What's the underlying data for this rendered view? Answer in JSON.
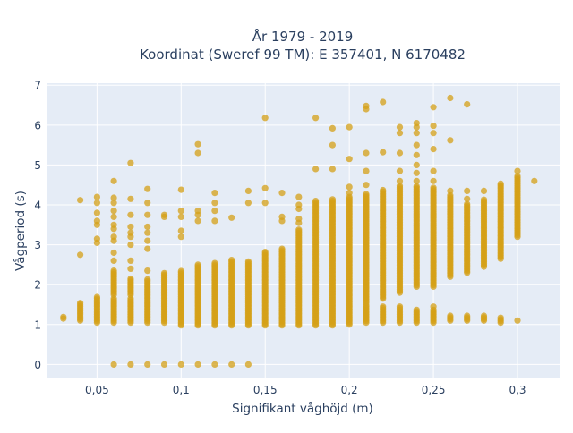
{
  "chart_data": {
    "type": "scatter",
    "title": "År 1979 - 2019",
    "subtitle": "Koordinat (Sweref 99 TM): E 357401, N 6170482",
    "xlabel": "Signifikant våghöjd (m)",
    "ylabel": "Vågperiod (s)",
    "xlim": [
      0.02,
      0.325
    ],
    "ylim": [
      -0.35,
      7.05
    ],
    "x_ticks": [
      0.05,
      0.1,
      0.15,
      0.2,
      0.25,
      0.3
    ],
    "x_tick_labels": [
      "0,05",
      "0,1",
      "0,15",
      "0,2",
      "0,25",
      "0,3"
    ],
    "y_ticks": [
      0,
      1,
      2,
      3,
      4,
      5,
      6,
      7
    ],
    "y_tick_labels": [
      "0",
      "1",
      "2",
      "3",
      "4",
      "5",
      "6",
      "7"
    ],
    "grid": true,
    "marker_color": "#D4A017",
    "background_color": "#E5ECF6",
    "columns": [
      {
        "x": 0.03,
        "bands": [
          [
            1.15,
            1.22
          ]
        ]
      },
      {
        "x": 0.04,
        "bands": [
          [
            1.1,
            1.55
          ]
        ],
        "points": [
          2.75,
          4.12
        ]
      },
      {
        "x": 0.05,
        "bands": [
          [
            1.05,
            1.7
          ]
        ],
        "points": [
          3.05,
          3.15,
          3.5,
          3.6,
          3.8,
          4.05,
          4.2
        ]
      },
      {
        "x": 0.06,
        "bands": [
          [
            1.05,
            1.65
          ],
          [
            1.75,
            2.35
          ]
        ],
        "points": [
          0,
          2.6,
          2.8,
          3.1,
          3.2,
          3.4,
          3.5,
          3.7,
          3.85,
          4.05,
          4.18,
          4.6
        ]
      },
      {
        "x": 0.07,
        "bands": [
          [
            1.05,
            1.65
          ],
          [
            1.75,
            2.15
          ]
        ],
        "points": [
          0,
          2.4,
          2.6,
          3.0,
          3.2,
          3.3,
          3.45,
          3.75,
          4.15,
          5.05
        ]
      },
      {
        "x": 0.08,
        "bands": [
          [
            1.05,
            2.15
          ]
        ],
        "points": [
          0,
          2.35,
          2.9,
          3.1,
          3.3,
          3.45,
          3.75,
          4.05,
          4.4
        ]
      },
      {
        "x": 0.09,
        "bands": [
          [
            1.05,
            2.3
          ]
        ],
        "points": [
          0,
          3.7,
          3.75
        ]
      },
      {
        "x": 0.1,
        "bands": [
          [
            0.98,
            2.35
          ]
        ],
        "points": [
          0,
          3.2,
          3.35,
          3.7,
          3.85,
          4.38
        ]
      },
      {
        "x": 0.11,
        "bands": [
          [
            0.98,
            2.5
          ]
        ],
        "points": [
          0,
          3.6,
          3.75,
          3.85,
          5.3,
          5.52
        ]
      },
      {
        "x": 0.12,
        "bands": [
          [
            0.98,
            2.55
          ]
        ],
        "points": [
          0,
          3.6,
          3.85,
          4.05,
          4.3
        ]
      },
      {
        "x": 0.13,
        "bands": [
          [
            0.98,
            2.65
          ]
        ],
        "points": [
          0,
          3.68
        ]
      },
      {
        "x": 0.14,
        "bands": [
          [
            0.98,
            2.6
          ]
        ],
        "points": [
          0,
          4.05,
          4.35
        ]
      },
      {
        "x": 0.15,
        "bands": [
          [
            0.98,
            2.85
          ]
        ],
        "points": [
          4.05,
          4.42,
          6.18
        ]
      },
      {
        "x": 0.16,
        "bands": [
          [
            0.98,
            2.9
          ]
        ],
        "points": [
          3.6,
          3.7,
          4.3
        ]
      },
      {
        "x": 0.17,
        "bands": [
          [
            0.98,
            3.4
          ]
        ],
        "points": [
          3.55,
          3.65,
          3.9,
          4.0,
          4.2
        ]
      },
      {
        "x": 0.18,
        "bands": [
          [
            0.98,
            4.1
          ]
        ],
        "points": [
          4.9,
          6.18
        ]
      },
      {
        "x": 0.19,
        "bands": [
          [
            0.98,
            4.15
          ]
        ],
        "points": [
          4.9,
          5.5,
          5.92
        ]
      },
      {
        "x": 0.2,
        "bands": [
          [
            1.0,
            4.2
          ]
        ],
        "points": [
          4.3,
          4.45,
          5.15,
          5.95
        ]
      },
      {
        "x": 0.21,
        "bands": [
          [
            1.05,
            1.5
          ],
          [
            1.55,
            4.3
          ]
        ],
        "points": [
          4.5,
          4.85,
          5.3,
          6.4,
          6.48
        ]
      },
      {
        "x": 0.22,
        "bands": [
          [
            1.05,
            1.45
          ],
          [
            1.65,
            4.4
          ]
        ],
        "points": [
          5.32,
          6.58
        ]
      },
      {
        "x": 0.23,
        "bands": [
          [
            1.05,
            1.45
          ],
          [
            1.8,
            4.5
          ]
        ],
        "points": [
          4.6,
          4.85,
          5.3,
          5.8,
          5.95
        ]
      },
      {
        "x": 0.24,
        "bands": [
          [
            1.05,
            1.4
          ],
          [
            1.95,
            4.5
          ]
        ],
        "points": [
          4.6,
          4.8,
          5.0,
          5.25,
          5.5,
          5.8,
          5.95,
          6.05
        ]
      },
      {
        "x": 0.25,
        "bands": [
          [
            1.05,
            1.4
          ],
          [
            1.95,
            4.45
          ]
        ],
        "points": [
          1.45,
          4.6,
          4.85,
          5.4,
          5.8,
          5.98,
          6.45
        ]
      },
      {
        "x": 0.26,
        "bands": [
          [
            1.1,
            1.25
          ],
          [
            2.2,
            4.25
          ]
        ],
        "points": [
          4.35,
          5.62,
          6.68
        ]
      },
      {
        "x": 0.27,
        "bands": [
          [
            1.1,
            1.25
          ],
          [
            2.3,
            4.05
          ]
        ],
        "points": [
          4.15,
          4.35,
          6.52
        ]
      },
      {
        "x": 0.28,
        "bands": [
          [
            1.1,
            1.25
          ],
          [
            2.45,
            4.15
          ]
        ],
        "points": [
          4.35
        ]
      },
      {
        "x": 0.29,
        "bands": [
          [
            1.05,
            1.2
          ],
          [
            2.65,
            4.55
          ]
        ]
      },
      {
        "x": 0.3,
        "bands": [
          [
            3.2,
            4.75
          ]
        ],
        "points": [
          1.1,
          4.85
        ]
      },
      {
        "x": 0.31,
        "points": [
          4.6
        ]
      }
    ]
  }
}
